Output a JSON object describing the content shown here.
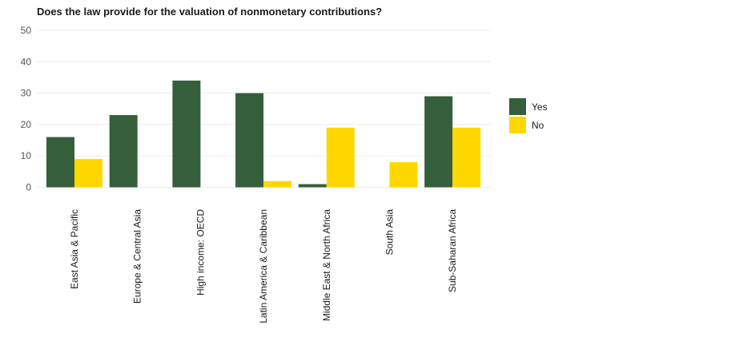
{
  "chart_data": {
    "type": "bar",
    "title": "Does the law provide for the valuation of nonmonetary contributions?",
    "xlabel": "",
    "ylabel": "",
    "ylim": [
      0,
      50
    ],
    "yticks": [
      0,
      10,
      20,
      30,
      40,
      50
    ],
    "grid": true,
    "legend_position": "right",
    "categories": [
      "East Asia & Pacific",
      "Europe & Central Asia",
      "High income: OECD",
      "Latin America & Caribbean",
      "Middle East & North Africa",
      "South Asia",
      "Sub-Saharan Africa"
    ],
    "series": [
      {
        "name": "Yes",
        "color": "#355e3b",
        "values": [
          16,
          23,
          34,
          30,
          1,
          0,
          29
        ]
      },
      {
        "name": "No",
        "color": "#ffd700",
        "values": [
          9,
          0,
          0,
          2,
          19,
          8,
          19
        ]
      }
    ]
  }
}
